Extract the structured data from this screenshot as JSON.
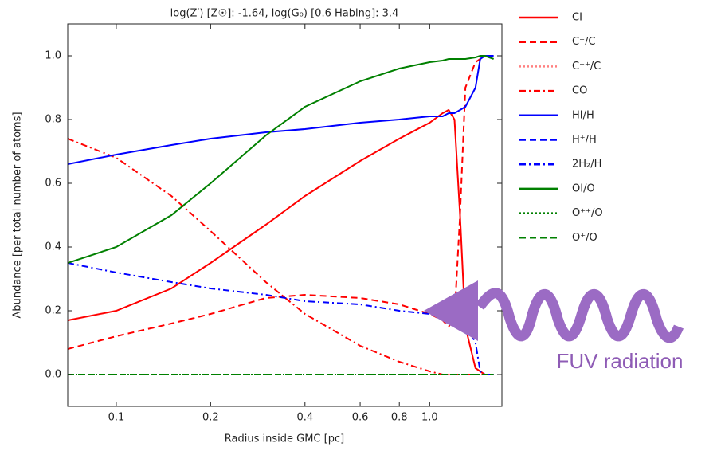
{
  "chart_data": {
    "type": "line",
    "title": "log(Z′) [Z☉]: -1.64, log(G₀) [0.6 Habing]: 3.4",
    "x_label": "Radius inside GMC [pc]",
    "y_label": "Abundance [per total number of atoms]",
    "annotation": "FUV radiation",
    "x_scale": "log",
    "xlim": [
      0.07,
      1.7
    ],
    "ylim": [
      -0.1,
      1.1
    ],
    "xticks": [
      0.1,
      0.2,
      0.4,
      0.6,
      0.8,
      {
        "value": 1,
        "label": "1.0"
      }
    ],
    "yticks": [
      {
        "value": 0,
        "label": "0.0"
      },
      0.2,
      0.4,
      0.6,
      0.8,
      {
        "value": 1,
        "label": "1.0"
      }
    ],
    "legend": "outside right",
    "x": [
      0.07,
      0.1,
      0.15,
      0.2,
      0.3,
      0.4,
      0.6,
      0.8,
      1.0,
      1.1,
      1.15,
      1.2,
      1.25,
      1.3,
      1.4,
      1.45,
      1.5,
      1.6
    ],
    "series": [
      {
        "name": "CI",
        "color": "#ff0000",
        "linestyle": "solid",
        "values": [
          0.17,
          0.2,
          0.27,
          0.35,
          0.47,
          0.56,
          0.67,
          0.74,
          0.79,
          0.82,
          0.83,
          0.8,
          0.5,
          0.15,
          0.02,
          0.01,
          0,
          0
        ]
      },
      {
        "name": "C⁺/C",
        "color": "#ff0000",
        "linestyle": "dashed",
        "values": [
          0.08,
          0.12,
          0.16,
          0.19,
          0.24,
          0.25,
          0.24,
          0.22,
          0.19,
          0.17,
          0.15,
          0.18,
          0.5,
          0.9,
          0.98,
          0.99,
          1,
          1
        ]
      },
      {
        "name": "C⁺⁺/C",
        "color": "#ff8080",
        "linestyle": "dotted",
        "values": [
          0,
          0,
          0,
          0,
          0,
          0,
          0,
          0,
          0,
          0,
          0,
          0,
          0,
          0,
          0,
          0,
          0,
          0
        ]
      },
      {
        "name": "CO",
        "color": "#ff0000",
        "linestyle": "dashdot",
        "values": [
          0.74,
          0.68,
          0.56,
          0.45,
          0.29,
          0.19,
          0.09,
          0.04,
          0.01,
          0,
          0,
          0,
          0,
          0,
          0,
          0,
          0,
          0
        ]
      },
      {
        "name": "HI/H",
        "color": "#0000ff",
        "linestyle": "solid",
        "values": [
          0.66,
          0.69,
          0.72,
          0.74,
          0.76,
          0.77,
          0.79,
          0.8,
          0.81,
          0.81,
          0.82,
          0.82,
          0.83,
          0.84,
          0.9,
          0.99,
          1,
          1
        ]
      },
      {
        "name": "H⁺/H",
        "color": "#0000ff",
        "linestyle": "dashed",
        "values": [
          0,
          0,
          0,
          0,
          0,
          0,
          0,
          0,
          0,
          0,
          0,
          0,
          0,
          0,
          0,
          0,
          0,
          0
        ]
      },
      {
        "name": "2H₂/H",
        "color": "#0000ff",
        "linestyle": "dashdot",
        "values": [
          0.35,
          0.32,
          0.29,
          0.27,
          0.25,
          0.23,
          0.22,
          0.2,
          0.19,
          0.18,
          0.18,
          0.18,
          0.17,
          0.16,
          0.1,
          0.01,
          0,
          0
        ]
      },
      {
        "name": "OI/O",
        "color": "#008000",
        "linestyle": "solid",
        "values": [
          0.35,
          0.4,
          0.5,
          0.6,
          0.75,
          0.84,
          0.92,
          0.96,
          0.98,
          0.985,
          0.99,
          0.99,
          0.99,
          0.99,
          0.995,
          1,
          1,
          0.99
        ]
      },
      {
        "name": "O⁺⁺/O",
        "color": "#008000",
        "linestyle": "dotted",
        "values": [
          0,
          0,
          0,
          0,
          0,
          0,
          0,
          0,
          0,
          0,
          0,
          0,
          0,
          0,
          0,
          0,
          0,
          0
        ]
      },
      {
        "name": "O⁺/O",
        "color": "#008000",
        "linestyle": "dashed",
        "values": [
          0,
          0,
          0,
          0,
          0,
          0,
          0,
          0,
          0,
          0,
          0,
          0,
          0,
          0,
          0,
          0,
          0,
          0
        ]
      }
    ]
  }
}
